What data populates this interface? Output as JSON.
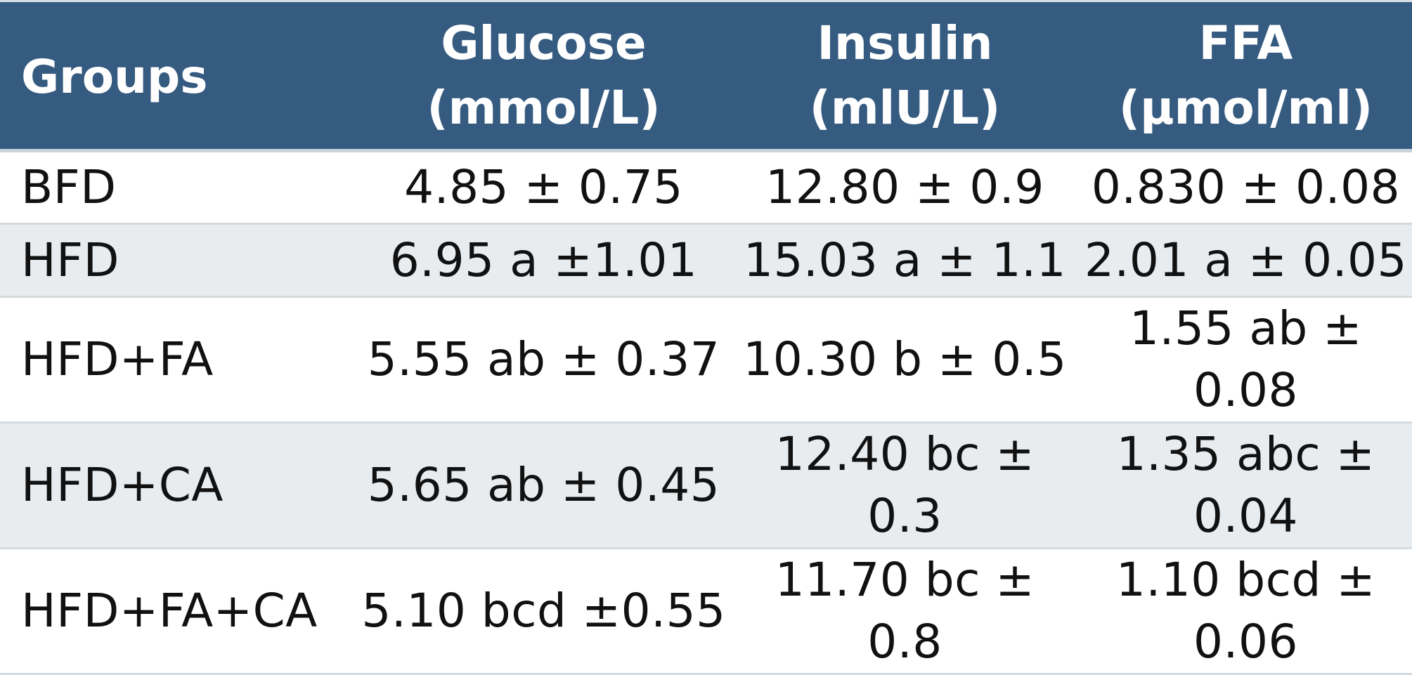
{
  "table": {
    "headers": {
      "groups": "Groups",
      "glucose_name": "Glucose",
      "glucose_unit": "(mmol/L)",
      "insulin_name": "Insulin",
      "insulin_unit": "(mlU/L)",
      "ffa_name": "FFA",
      "ffa_unit": "(µmol/ml)"
    },
    "rows": [
      {
        "group": "BFD",
        "glucose": "4.85 ± 0.75",
        "insulin": "12.80 ± 0.9",
        "ffa": "0.830 ± 0.08"
      },
      {
        "group": "HFD",
        "glucose": "6.95 a ±1.01",
        "insulin": "15.03 a ± 1.1",
        "ffa": "2.01 a ± 0.05"
      },
      {
        "group": "HFD+FA",
        "glucose": "5.55 ab ± 0.37",
        "insulin": "10.30 b ± 0.5",
        "ffa": "1.55 ab ± 0.08"
      },
      {
        "group": "HFD+CA",
        "glucose": "5.65 ab ± 0.45",
        "insulin": "12.40 bc ± 0.3",
        "ffa": "1.35 abc ± 0.04"
      },
      {
        "group": "HFD+FA+CA",
        "glucose": "5.10 bcd ±0.55",
        "insulin": "11.70 bc ± 0.8",
        "ffa": "1.10 bcd ± 0.06"
      }
    ]
  },
  "colors": {
    "header_bg": "#365b80",
    "header_text": "#ffffff",
    "row_alt_bg": "#e8ecef",
    "body_text": "#111111"
  }
}
